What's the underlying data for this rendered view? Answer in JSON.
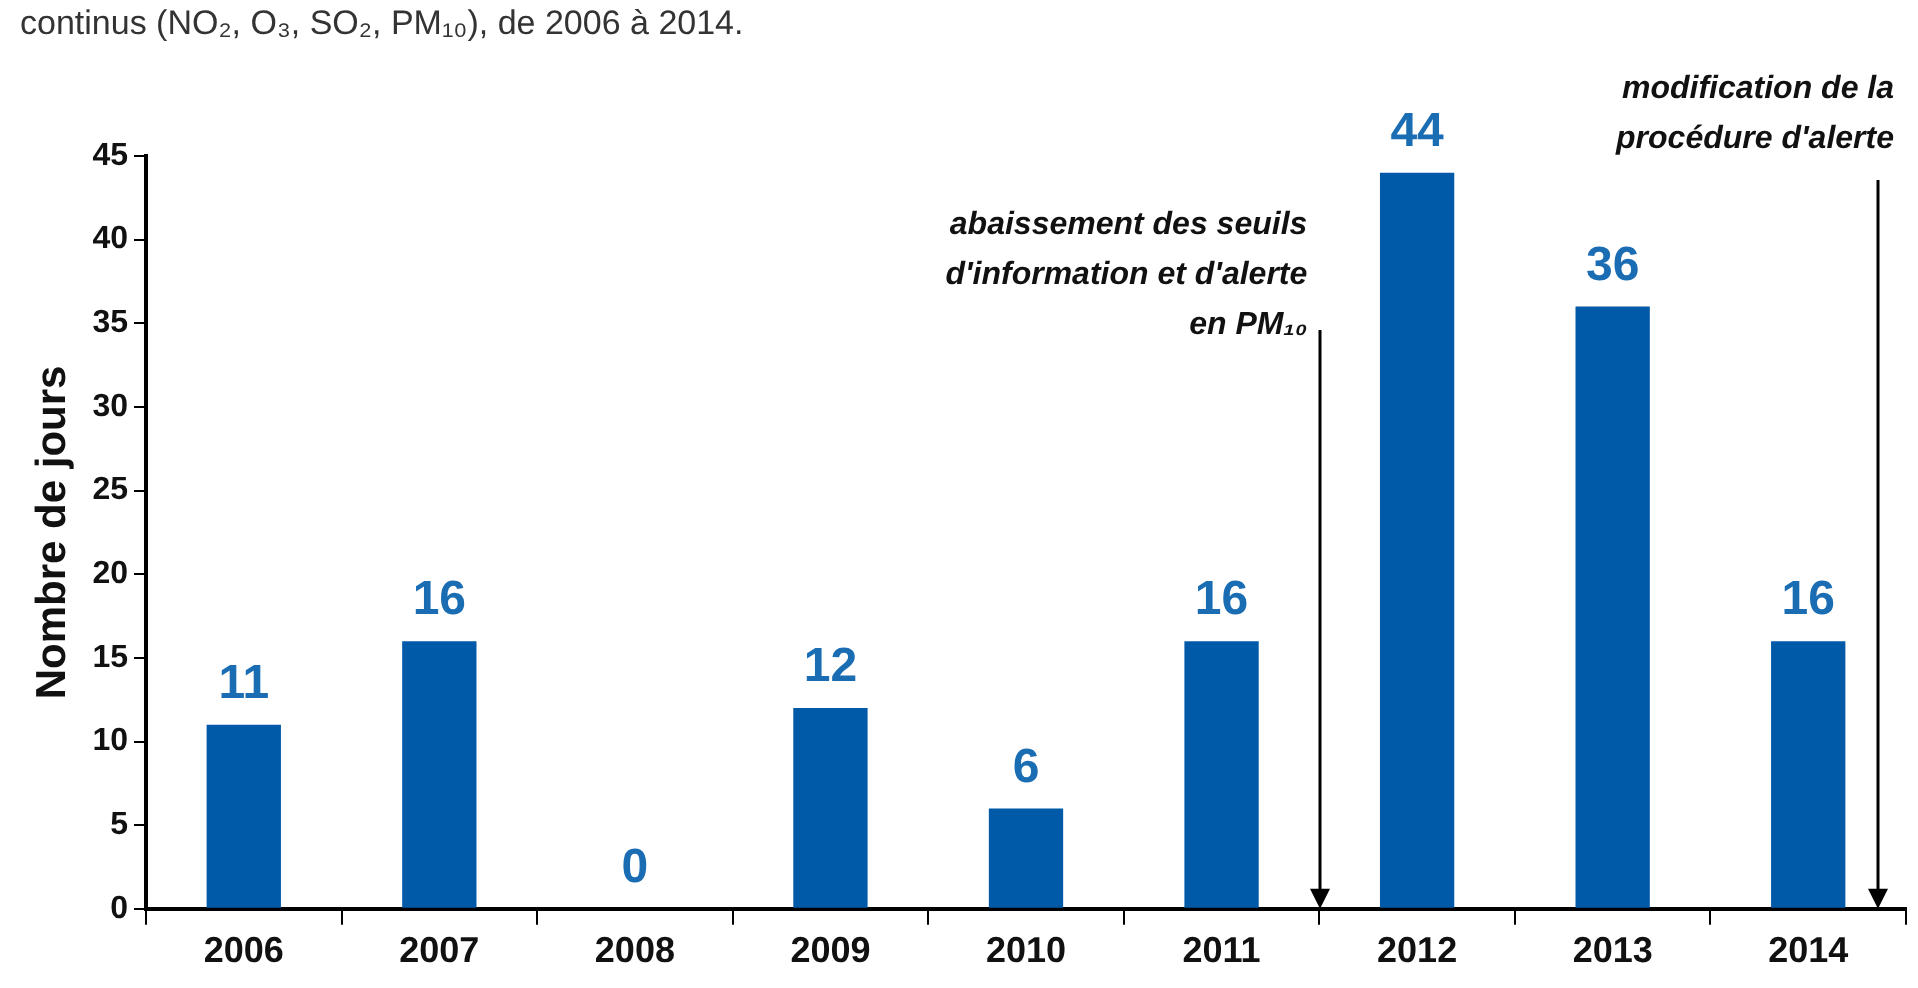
{
  "chart_data": {
    "type": "bar",
    "subtitle": "continus (NO₂, O₃, SO₂, PM₁₀), de 2006 à 2014.",
    "ylabel": "Nombre de jours",
    "categories": [
      "2006",
      "2007",
      "2008",
      "2009",
      "2010",
      "2011",
      "2012",
      "2013",
      "2014"
    ],
    "values": [
      11,
      16,
      0,
      12,
      6,
      16,
      44,
      36,
      16
    ],
    "color": "#005aa8",
    "ylim": [
      0,
      45
    ],
    "yticks": [
      0,
      5,
      10,
      15,
      20,
      25,
      30,
      35,
      40,
      45
    ],
    "data_labels": true,
    "grid": false,
    "legend": false,
    "annotations": [
      "abaissement des seuils\nd'information et d'alerte\nen PM₁₀",
      "modification de la\nprocédure d'alerte"
    ]
  }
}
